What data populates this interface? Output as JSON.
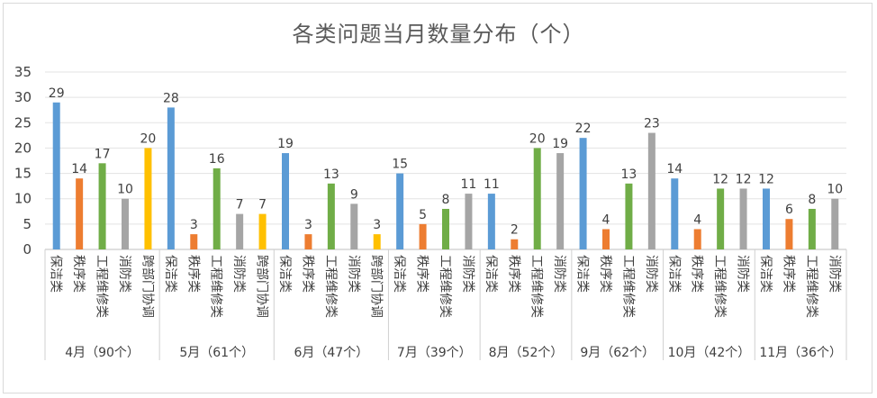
{
  "chart_data": {
    "type": "bar",
    "title": "各类问题当月数量分布（个）",
    "xlabel": "",
    "ylabel": "",
    "ylim": [
      0,
      35
    ],
    "yticks": [
      0,
      5,
      10,
      15,
      20,
      25,
      30,
      35
    ],
    "grid": true,
    "legend": "none",
    "colors": {
      "保洁类": "#5b9bd5",
      "秩序类": "#ed7d31",
      "工程维修类": "#70ad47",
      "消防类": "#a5a5a5",
      "跨部门协调": "#ffc000"
    },
    "groups": [
      {
        "label": "4月（90个）",
        "items": [
          {
            "category": "保洁类",
            "value": 29
          },
          {
            "category": "秩序类",
            "value": 14
          },
          {
            "category": "工程维修类",
            "value": 17
          },
          {
            "category": "消防类",
            "value": 10
          },
          {
            "category": "跨部门协调",
            "value": 20
          }
        ]
      },
      {
        "label": "5月（61个）",
        "items": [
          {
            "category": "保洁类",
            "value": 28
          },
          {
            "category": "秩序类",
            "value": 3
          },
          {
            "category": "工程维修类",
            "value": 16
          },
          {
            "category": "消防类",
            "value": 7
          },
          {
            "category": "跨部门协调",
            "value": 7
          }
        ]
      },
      {
        "label": "6月（47个）",
        "items": [
          {
            "category": "保洁类",
            "value": 19
          },
          {
            "category": "秩序类",
            "value": 3
          },
          {
            "category": "工程维修类",
            "value": 13
          },
          {
            "category": "消防类",
            "value": 9
          },
          {
            "category": "跨部门协调",
            "value": 3
          }
        ]
      },
      {
        "label": "7月（39个）",
        "items": [
          {
            "category": "保洁类",
            "value": 15
          },
          {
            "category": "秩序类",
            "value": 5
          },
          {
            "category": "工程维修类",
            "value": 8
          },
          {
            "category": "消防类",
            "value": 11
          }
        ]
      },
      {
        "label": "8月（52个）",
        "items": [
          {
            "category": "保洁类",
            "value": 11
          },
          {
            "category": "秩序类",
            "value": 2
          },
          {
            "category": "工程维修类",
            "value": 20
          },
          {
            "category": "消防类",
            "value": 19
          }
        ]
      },
      {
        "label": "9月（62个）",
        "items": [
          {
            "category": "保洁类",
            "value": 22
          },
          {
            "category": "秩序类",
            "value": 4
          },
          {
            "category": "工程维修类",
            "value": 13
          },
          {
            "category": "消防类",
            "value": 23
          }
        ]
      },
      {
        "label": "10月（42个）",
        "items": [
          {
            "category": "保洁类",
            "value": 14
          },
          {
            "category": "秩序类",
            "value": 4
          },
          {
            "category": "工程维修类",
            "value": 12
          },
          {
            "category": "消防类",
            "value": 12
          }
        ]
      },
      {
        "label": "11月（36个）",
        "items": [
          {
            "category": "保洁类",
            "value": 12
          },
          {
            "category": "秩序类",
            "value": 6
          },
          {
            "category": "工程维修类",
            "value": 8
          },
          {
            "category": "消防类",
            "value": 10
          }
        ]
      }
    ]
  }
}
